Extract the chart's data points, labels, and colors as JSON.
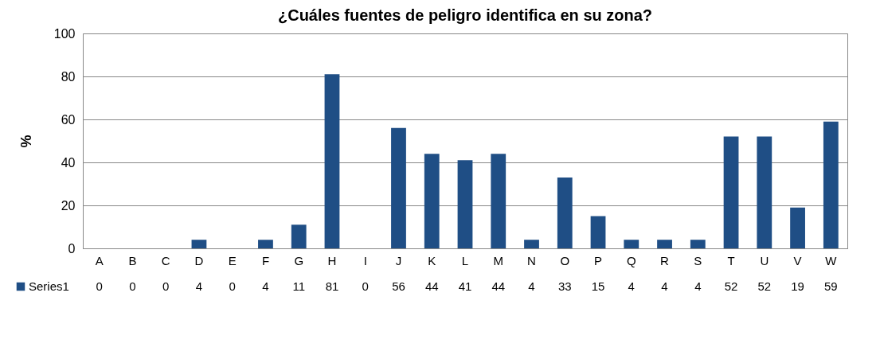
{
  "chart_data": {
    "type": "bar",
    "title": "¿Cuáles fuentes de peligro identifica en su zona?",
    "ylabel": "%",
    "categories": [
      "A",
      "B",
      "C",
      "D",
      "E",
      "F",
      "G",
      "H",
      "I",
      "J",
      "K",
      "L",
      "M",
      "N",
      "O",
      "P",
      "Q",
      "R",
      "S",
      "T",
      "U",
      "V",
      "W"
    ],
    "series": [
      {
        "name": "Series1",
        "color": "#1f4e85",
        "values": [
          0,
          0,
          0,
          4,
          0,
          4,
          11,
          81,
          0,
          56,
          44,
          41,
          44,
          4,
          33,
          15,
          4,
          4,
          4,
          52,
          52,
          19,
          59
        ]
      }
    ],
    "ylim": [
      0,
      100
    ],
    "yticks": [
      0,
      20,
      40,
      60,
      80,
      100
    ],
    "grid": "y",
    "legend": "bottom left",
    "data_labels": true
  }
}
